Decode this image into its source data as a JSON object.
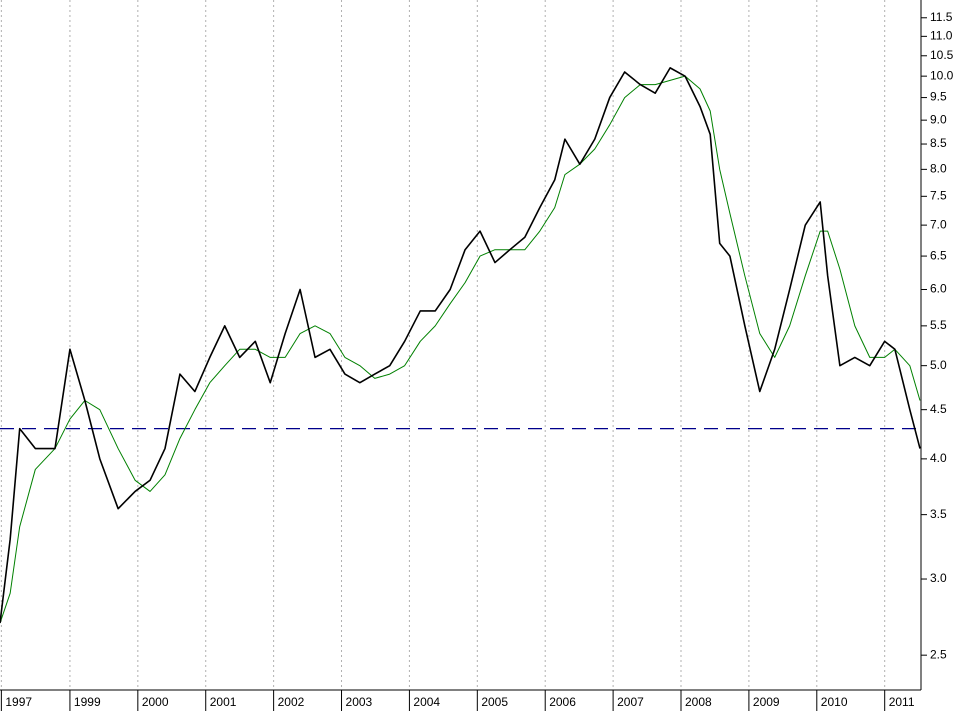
{
  "chart_data": {
    "type": "line",
    "log_scale": true,
    "grid": true,
    "x": [
      1997.97,
      1998.12,
      1998.26,
      1998.49,
      1998.78,
      1999.0,
      1999.22,
      1999.44,
      1999.71,
      1999.96,
      2000.18,
      2000.4,
      2000.62,
      2000.84,
      2001.06,
      2001.28,
      2001.5,
      2001.73,
      2001.95,
      2002.17,
      2002.39,
      2002.61,
      2002.83,
      2003.05,
      2003.27,
      2003.49,
      2003.71,
      2003.93,
      2004.16,
      2004.38,
      2004.6,
      2004.82,
      2005.04,
      2005.26,
      2005.48,
      2005.7,
      2005.92,
      2006.14,
      2006.29,
      2006.51,
      2006.73,
      2006.95,
      2007.17,
      2007.4,
      2007.62,
      2007.84,
      2008.06,
      2008.28,
      2008.43,
      2008.57,
      2008.72,
      2008.94,
      2009.16,
      2009.38,
      2009.6,
      2009.83,
      2010.05,
      2010.16,
      2010.34,
      2010.56,
      2010.78,
      2011.0,
      2011.15,
      2011.37,
      2011.52
    ],
    "series": [
      {
        "color": "#000000",
        "values": [
          2.7,
          3.3,
          4.3,
          4.1,
          4.1,
          5.2,
          4.6,
          4.0,
          3.55,
          3.7,
          3.8,
          4.1,
          4.9,
          4.7,
          5.1,
          5.5,
          5.1,
          5.3,
          4.8,
          5.4,
          6.0,
          5.1,
          5.2,
          4.9,
          4.8,
          4.9,
          5.0,
          5.3,
          5.7,
          5.7,
          6.0,
          6.6,
          6.9,
          6.4,
          6.6,
          6.8,
          7.3,
          7.8,
          8.6,
          8.1,
          8.6,
          9.5,
          10.1,
          9.8,
          9.6,
          10.2,
          10.0,
          9.3,
          8.7,
          6.7,
          6.5,
          5.5,
          4.7,
          5.2,
          6.0,
          7.0,
          7.4,
          6.2,
          5.0,
          5.1,
          5.0,
          5.3,
          5.2,
          4.5,
          4.1
        ]
      },
      {
        "color": "#008000",
        "values": [
          2.7,
          2.9,
          3.4,
          3.9,
          4.1,
          4.4,
          4.6,
          4.5,
          4.1,
          3.8,
          3.7,
          3.85,
          4.2,
          4.5,
          4.8,
          5.0,
          5.2,
          5.2,
          5.1,
          5.1,
          5.4,
          5.5,
          5.4,
          5.1,
          5.0,
          4.85,
          4.9,
          5.0,
          5.3,
          5.5,
          5.8,
          6.1,
          6.5,
          6.6,
          6.6,
          6.6,
          6.9,
          7.3,
          7.9,
          8.1,
          8.4,
          8.9,
          9.5,
          9.8,
          9.8,
          9.9,
          10.0,
          9.7,
          9.2,
          8.0,
          7.2,
          6.2,
          5.4,
          5.1,
          5.5,
          6.2,
          6.9,
          6.9,
          6.3,
          5.5,
          5.1,
          5.1,
          5.2,
          5.0,
          4.6
        ]
      }
    ],
    "reference_lines": [
      {
        "value": 4.3,
        "color": "#00008b"
      }
    ],
    "xlim": [
      1997.97,
      2011.52
    ],
    "xticks": [
      {
        "value": 1997.99,
        "label": "1997"
      },
      1999,
      2000,
      2001,
      2002,
      2003,
      2004,
      2005,
      2006,
      2007,
      2008,
      2009,
      2010,
      2011
    ],
    "ylim": [
      2.3,
      12.0
    ],
    "yticks": [
      2.5,
      {
        "value": 3,
        "label": "3.0"
      },
      3.5,
      {
        "value": 4,
        "label": "4.0"
      },
      4.5,
      {
        "value": 5,
        "label": "5.0"
      },
      5.5,
      {
        "value": 6,
        "label": "6.0"
      },
      6.5,
      {
        "value": 7,
        "label": "7.0"
      },
      7.5,
      {
        "value": 8,
        "label": "8.0"
      },
      8.5,
      {
        "value": 9,
        "label": "9.0"
      },
      9.5,
      {
        "value": 10,
        "label": "10.0"
      },
      10.5,
      {
        "value": 11,
        "label": "11.0"
      },
      11.5
    ]
  }
}
